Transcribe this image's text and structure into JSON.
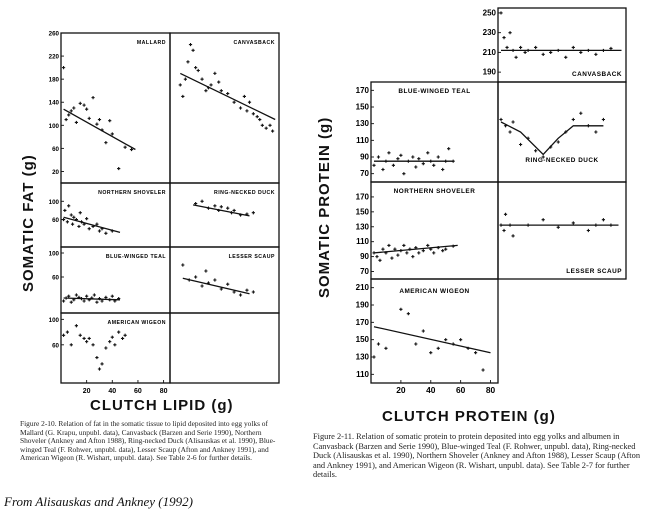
{
  "figure1": {
    "ylabel": "SOMATIC FAT (g)",
    "xlabel": "CLUTCH LIPID (g)",
    "caption": "Figure 2-10. Relation of fat in the somatic tissue to lipid deposited into egg yolks of Mallard (G. Krapu, unpubl. data), Canvasback (Barzen and Serie 1990), Northern Shoveler (Ankney and Afton 1988), Ring-necked Duck (Alisauskas et al. 1990), Blue-winged Teal (F. Rohwer, unpubl. data), Lesser Scaup (Afton and Ankney 1991), and American Wigeon (R. Wishart, unpubl. data). See Table 2-6 for further details.",
    "credit": "From Alisauskas and Ankney (1992)"
  },
  "figure2": {
    "ylabel": "SOMATIC PROTEIN (g)",
    "xlabel": "CLUTCH PROTEIN (g)",
    "caption": "Figure 2-11. Relation of somatic protein to protein deposited into egg yolks and albumen in Canvasback (Barzen and Serie 1990), Blue-winged Teal (F. Rohwer, unpubl. data), Ring-necked Duck (Alisauskas et al. 1990), Northern Shoveler (Ankney and Afton 1988), Lesser Scaup (Afton and Ankney 1991), and American Wigeon (R. Wishart, unpubl. data). See Table 2-7 for further details."
  },
  "chart_data": [
    {
      "type": "scatter",
      "figure": 1,
      "title": "MALLARD",
      "xlim": [
        0,
        85
      ],
      "ylim": [
        0,
        260
      ],
      "yticks": [
        0,
        20,
        60,
        100,
        140,
        180,
        220,
        260
      ],
      "ytick_labels": [
        "",
        "20",
        "60",
        "100",
        "140",
        "180",
        "220",
        "260"
      ],
      "x": [
        2,
        4,
        6,
        8,
        10,
        12,
        15,
        18,
        20,
        22,
        25,
        28,
        30,
        32,
        35,
        38,
        40,
        45,
        50,
        55
      ],
      "y": [
        200,
        110,
        118,
        125,
        130,
        105,
        138,
        135,
        128,
        112,
        148,
        102,
        110,
        92,
        70,
        108,
        85,
        25,
        62,
        58
      ],
      "fit": [
        [
          2,
          128
        ],
        [
          58,
          58
        ]
      ]
    },
    {
      "type": "scatter",
      "figure": 1,
      "title": "CANVASBACK",
      "xlim": [
        0,
        85
      ],
      "ylim": [
        0,
        260
      ],
      "x": [
        8,
        10,
        12,
        14,
        16,
        18,
        20,
        22,
        25,
        28,
        30,
        32,
        35,
        38,
        40,
        45,
        50,
        55,
        58,
        60,
        62,
        65,
        68,
        70,
        72,
        75,
        78,
        80
      ],
      "y": [
        170,
        150,
        180,
        210,
        240,
        230,
        200,
        195,
        180,
        160,
        165,
        170,
        190,
        175,
        160,
        155,
        140,
        130,
        150,
        125,
        140,
        120,
        115,
        110,
        100,
        95,
        100,
        90
      ],
      "fit": [
        [
          8,
          190
        ],
        [
          82,
          110
        ]
      ]
    },
    {
      "type": "scatter",
      "figure": 1,
      "title": "NORTHERN SHOVELER",
      "xlim": [
        0,
        85
      ],
      "ylim": [
        0,
        140
      ],
      "yticks": [
        0,
        60,
        100
      ],
      "ytick_labels": [
        "",
        "60",
        "100"
      ],
      "x": [
        2,
        3,
        5,
        6,
        8,
        9,
        10,
        12,
        14,
        15,
        16,
        18,
        20,
        22,
        25,
        28,
        30,
        32,
        35,
        40
      ],
      "y": [
        60,
        80,
        55,
        90,
        70,
        50,
        65,
        60,
        45,
        75,
        55,
        50,
        62,
        40,
        45,
        50,
        35,
        40,
        30,
        35
      ],
      "fit": [
        [
          2,
          65
        ],
        [
          46,
          32
        ]
      ]
    },
    {
      "type": "scatter",
      "figure": 1,
      "title": "RING-NECKED DUCK",
      "xlim": [
        0,
        85
      ],
      "ylim": [
        0,
        140
      ],
      "x": [
        20,
        25,
        30,
        35,
        38,
        40,
        45,
        48,
        50,
        55,
        60,
        65
      ],
      "y": [
        95,
        100,
        85,
        90,
        80,
        88,
        85,
        75,
        80,
        70,
        72,
        75
      ],
      "fit": [
        [
          18,
          92
        ],
        [
          62,
          68
        ]
      ]
    },
    {
      "type": "scatter",
      "figure": 1,
      "title": "BLUE-WINGED TEAL",
      "xlim": [
        0,
        85
      ],
      "ylim": [
        0,
        110
      ],
      "yticks": [
        0,
        60,
        100
      ],
      "ytick_labels": [
        "",
        "60",
        "100"
      ],
      "x": [
        2,
        4,
        6,
        8,
        10,
        12,
        14,
        16,
        18,
        20,
        22,
        24,
        26,
        28,
        30,
        32,
        35,
        38,
        40,
        42,
        45
      ],
      "y": [
        20,
        25,
        28,
        18,
        22,
        30,
        26,
        24,
        20,
        28,
        22,
        25,
        30,
        18,
        24,
        20,
        26,
        22,
        28,
        20,
        24
      ],
      "fit": [
        [
          2,
          25
        ],
        [
          46,
          22
        ]
      ]
    },
    {
      "type": "scatter",
      "figure": 1,
      "title": "LESSER SCAUP",
      "xlim": [
        0,
        85
      ],
      "ylim": [
        0,
        110
      ],
      "x": [
        10,
        15,
        20,
        25,
        28,
        30,
        35,
        40,
        45,
        50,
        55,
        60,
        65
      ],
      "y": [
        80,
        55,
        60,
        45,
        70,
        50,
        55,
        40,
        48,
        35,
        30,
        38,
        35
      ],
      "fit": [
        [
          10,
          58
        ],
        [
          62,
          32
        ]
      ]
    },
    {
      "type": "scatter",
      "figure": 1,
      "title": "AMERICAN WIGEON",
      "xlim": [
        0,
        85
      ],
      "ylim": [
        0,
        110
      ],
      "yticks": [
        0,
        60,
        100
      ],
      "ytick_labels": [
        "",
        "60",
        "100"
      ],
      "xticks": [
        20,
        40,
        60,
        80
      ],
      "xtick_labels": [
        "20",
        "40",
        "60",
        "80"
      ],
      "x": [
        2,
        5,
        8,
        12,
        15,
        18,
        20,
        22,
        25,
        28,
        30,
        32,
        35,
        38,
        40,
        42,
        45,
        48,
        50
      ],
      "y": [
        75,
        80,
        60,
        90,
        75,
        70,
        65,
        70,
        60,
        40,
        22,
        30,
        55,
        65,
        72,
        60,
        80,
        70,
        75
      ]
    },
    {
      "type": "scatter",
      "figure": 2,
      "title": "CANVASBACK",
      "xlim": [
        0,
        85
      ],
      "ylim": [
        180,
        255
      ],
      "yticks": [
        190,
        210,
        230,
        250
      ],
      "ytick_labels": [
        "190",
        "210",
        "230",
        "250"
      ],
      "x": [
        2,
        4,
        6,
        8,
        10,
        12,
        15,
        18,
        20,
        25,
        30,
        35,
        40,
        45,
        50,
        55,
        60,
        65,
        70,
        75
      ],
      "y": [
        250,
        225,
        215,
        230,
        212,
        205,
        215,
        210,
        212,
        215,
        208,
        210,
        212,
        205,
        215,
        210,
        212,
        208,
        212,
        214
      ],
      "fit": [
        [
          2,
          212
        ],
        [
          82,
          212
        ]
      ]
    },
    {
      "type": "scatter",
      "figure": 2,
      "title": "BLUE-WINGED TEAL",
      "xlim": [
        0,
        85
      ],
      "ylim": [
        60,
        180
      ],
      "yticks": [
        70,
        90,
        110,
        130,
        150,
        170
      ],
      "ytick_labels": [
        "70",
        "90",
        "110",
        "130",
        "150",
        "170"
      ],
      "x": [
        2,
        5,
        8,
        10,
        12,
        15,
        18,
        20,
        22,
        25,
        28,
        30,
        32,
        35,
        38,
        40,
        42,
        45,
        48,
        50,
        52,
        55
      ],
      "y": [
        80,
        90,
        75,
        85,
        95,
        80,
        88,
        92,
        70,
        85,
        90,
        78,
        88,
        82,
        95,
        85,
        80,
        90,
        75,
        85,
        100,
        85
      ],
      "fit": [
        [
          2,
          85
        ],
        [
          55,
          85
        ]
      ]
    },
    {
      "type": "scatter",
      "figure": 2,
      "title": "RING-NECKED DUCK",
      "xlim": [
        0,
        85
      ],
      "ylim": [
        100,
        180
      ],
      "x": [
        2,
        5,
        8,
        10,
        15,
        20,
        25,
        30,
        35,
        40,
        45,
        50,
        55,
        60,
        65,
        70
      ],
      "y": [
        150,
        145,
        140,
        148,
        130,
        135,
        125,
        120,
        128,
        132,
        140,
        150,
        155,
        145,
        140,
        150
      ],
      "fit": [
        [
          2,
          148
        ],
        [
          15,
          140
        ],
        [
          30,
          122
        ],
        [
          40,
          135
        ],
        [
          50,
          145
        ],
        [
          70,
          145
        ]
      ]
    },
    {
      "type": "scatter",
      "figure": 2,
      "title": "NORTHERN SHOVELER",
      "xlim": [
        0,
        85
      ],
      "ylim": [
        60,
        190
      ],
      "yticks": [
        70,
        90,
        110,
        130,
        150,
        170
      ],
      "ytick_labels": [
        "70",
        "90",
        "110",
        "130",
        "150",
        "170"
      ],
      "x": [
        2,
        4,
        6,
        8,
        10,
        12,
        14,
        16,
        18,
        20,
        22,
        24,
        26,
        28,
        30,
        32,
        35,
        38,
        40,
        42,
        45,
        48,
        50,
        55
      ],
      "y": [
        95,
        90,
        85,
        100,
        95,
        105,
        88,
        100,
        92,
        98,
        105,
        95,
        100,
        90,
        102,
        95,
        98,
        105,
        100,
        95,
        102,
        98,
        100,
        104
      ],
      "fit": [
        [
          2,
          95
        ],
        [
          58,
          105
        ]
      ]
    },
    {
      "type": "scatter",
      "figure": 2,
      "title": "LESSER SCAUP",
      "xlim": [
        0,
        85
      ],
      "ylim": [
        100,
        190
      ],
      "x": [
        2,
        4,
        5,
        8,
        10,
        20,
        30,
        40,
        50,
        60,
        65,
        70,
        75
      ],
      "y": [
        150,
        145,
        160,
        150,
        140,
        150,
        155,
        148,
        152,
        145,
        150,
        155,
        150
      ],
      "fit": [
        [
          2,
          150
        ],
        [
          80,
          150
        ]
      ]
    },
    {
      "type": "scatter",
      "figure": 2,
      "title": "AMERICAN WIGEON",
      "xlim": [
        0,
        85
      ],
      "ylim": [
        100,
        220
      ],
      "yticks": [
        110,
        130,
        150,
        170,
        190,
        210
      ],
      "ytick_labels": [
        "110",
        "130",
        "150",
        "170",
        "190",
        "210"
      ],
      "xticks": [
        20,
        40,
        60,
        80
      ],
      "xtick_labels": [
        "20",
        "40",
        "60",
        "80"
      ],
      "x": [
        2,
        5,
        10,
        20,
        25,
        30,
        35,
        40,
        45,
        50,
        55,
        60,
        65,
        70,
        75
      ],
      "y": [
        130,
        145,
        140,
        185,
        180,
        145,
        160,
        135,
        140,
        150,
        145,
        150,
        140,
        135,
        115
      ],
      "fit": [
        [
          2,
          165
        ],
        [
          80,
          135
        ]
      ]
    }
  ]
}
